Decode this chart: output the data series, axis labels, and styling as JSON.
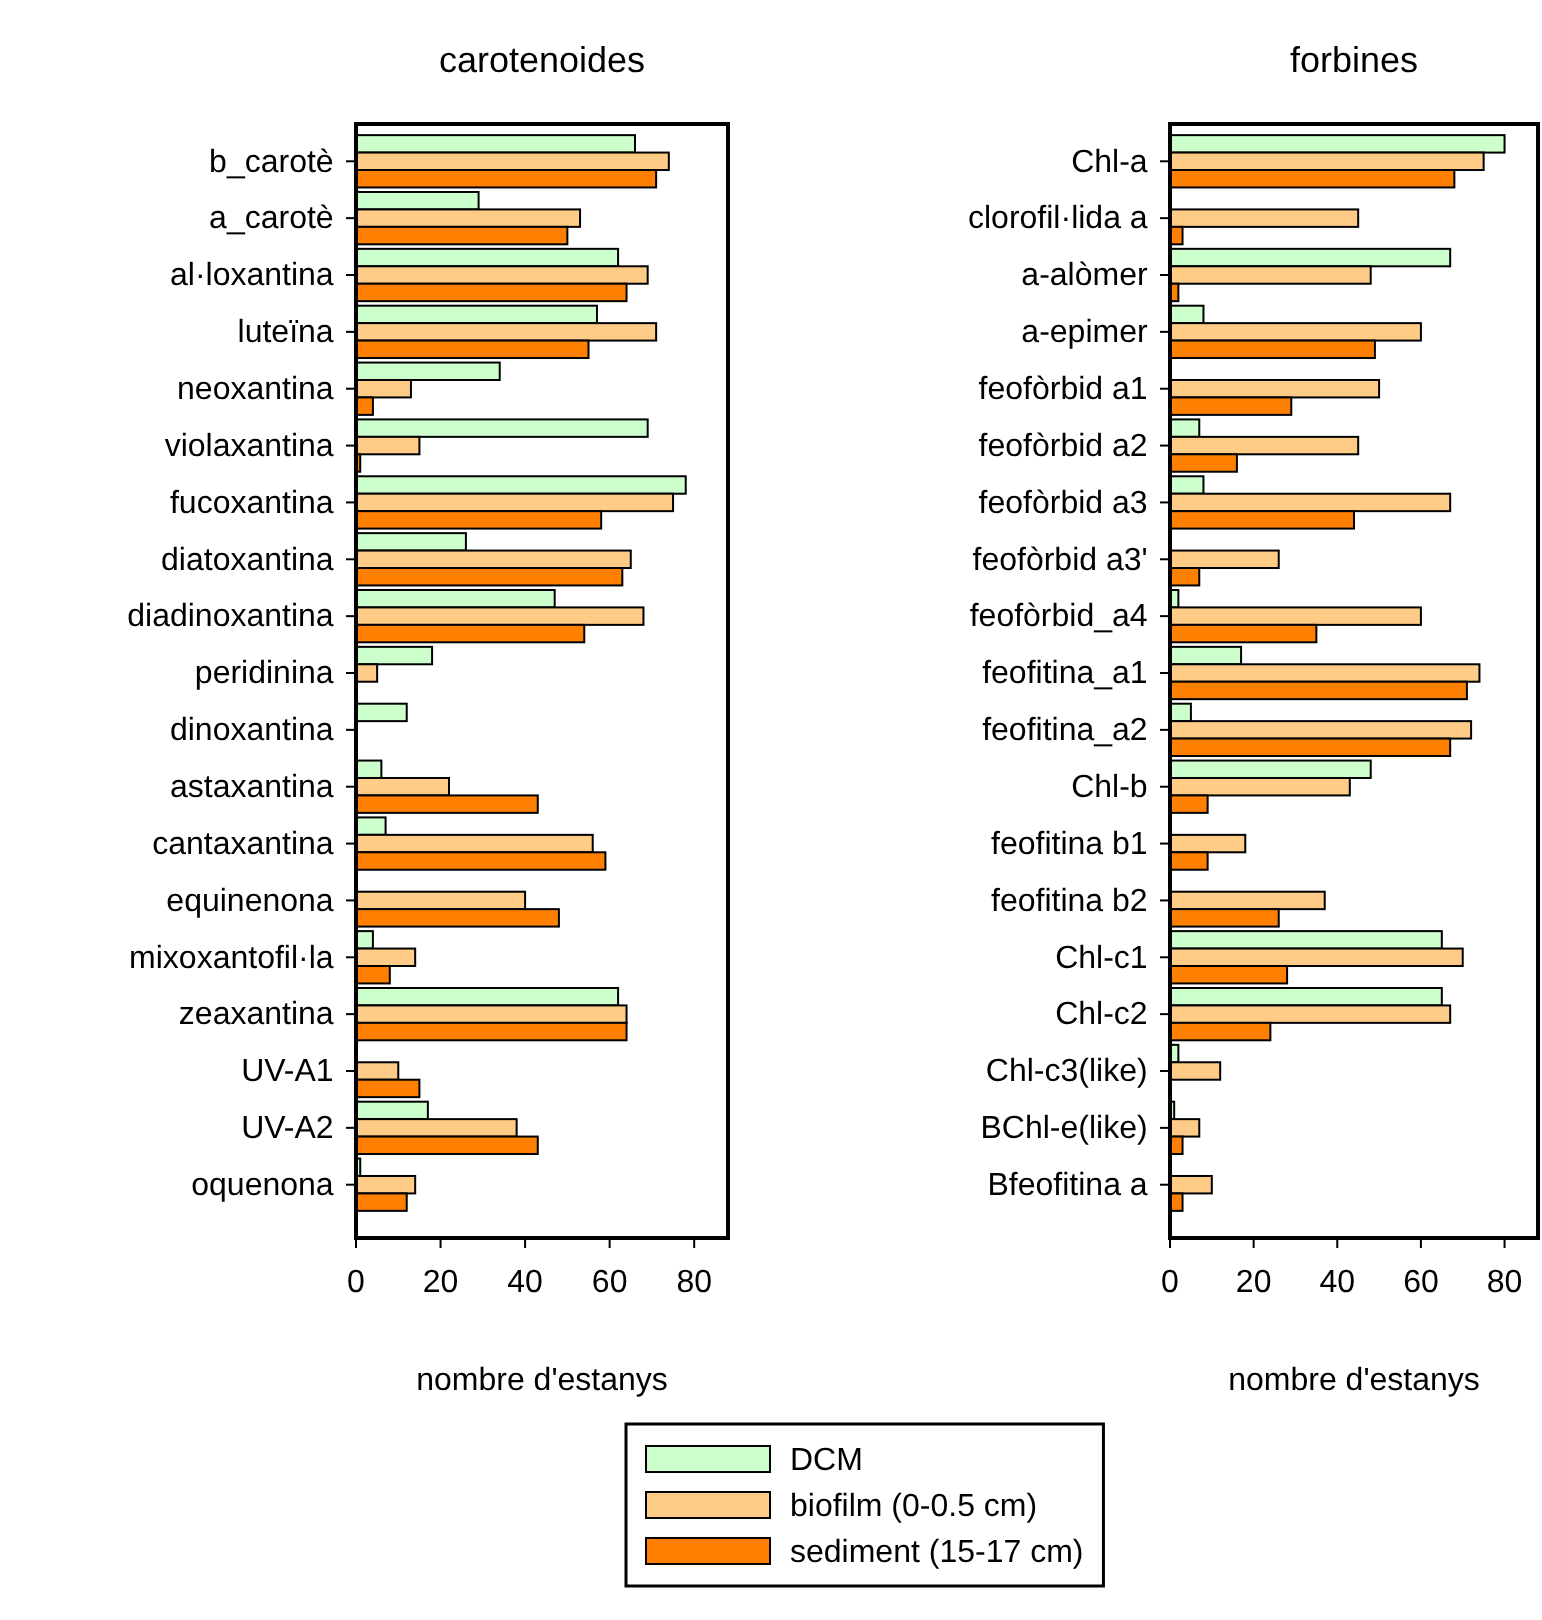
{
  "chart_data": [
    {
      "type": "bar",
      "orientation": "horizontal",
      "title": "carotenoides",
      "xlabel": "nombre d'estanys",
      "xlim": [
        0,
        88
      ],
      "xticks": [
        0,
        20,
        40,
        60,
        80
      ],
      "legend": "bottom",
      "categories": [
        "b_carotè",
        "a_carotè",
        "al·loxantina",
        "luteïna",
        "neoxantina",
        "violaxantina",
        "fucoxantina",
        "diatoxantina",
        "diadinoxantina",
        "peridinina",
        "dinoxantina",
        "astaxantina",
        "cantaxantina",
        "equinenona",
        "mixoxantofil·la",
        "zeaxantina",
        "UV-A1",
        "UV-A2",
        "oquenona"
      ],
      "series": [
        {
          "name": "DCM",
          "color": "#ccffcc",
          "values": [
            66,
            29,
            62,
            57,
            34,
            69,
            78,
            26,
            47,
            18,
            12,
            6,
            7,
            null,
            4,
            62,
            null,
            17,
            1
          ]
        },
        {
          "name": "biofilm (0-0.5 cm)",
          "color": "#ffcc88",
          "values": [
            74,
            53,
            69,
            71,
            13,
            15,
            75,
            65,
            68,
            5,
            null,
            22,
            56,
            40,
            14,
            64,
            10,
            38,
            14
          ]
        },
        {
          "name": "sediment (15-17 cm)",
          "color": "#ff8000",
          "values": [
            71,
            50,
            64,
            55,
            4,
            1,
            58,
            63,
            54,
            null,
            null,
            43,
            59,
            48,
            8,
            64,
            15,
            43,
            12
          ]
        }
      ]
    },
    {
      "type": "bar",
      "orientation": "horizontal",
      "title": "forbines",
      "xlabel": "nombre d'estanys",
      "xlim": [
        0,
        88
      ],
      "xticks": [
        0,
        20,
        40,
        60,
        80
      ],
      "categories": [
        "Chl-a",
        "clorofil·lida a",
        "a-alòmer",
        "a-epimer",
        "feofòrbid a1",
        "feofòrbid a2",
        "feofòrbid a3",
        "feofòrbid a3'",
        "feofòrbid_a4",
        "feofitina_a1",
        "feofitina_a2",
        "Chl-b",
        "feofitina b1",
        "feofitina b2",
        "Chl-c1",
        "Chl-c2",
        "Chl-c3(like)",
        "BChl-e(like)",
        "Bfeofitina a"
      ],
      "series": [
        {
          "color": "#ccffcc",
          "values": [
            80,
            null,
            67,
            8,
            null,
            7,
            8,
            null,
            2,
            17,
            5,
            48,
            null,
            null,
            65,
            65,
            2,
            1,
            null
          ]
        },
        {
          "color": "#ffcc88",
          "values": [
            75,
            45,
            48,
            60,
            50,
            45,
            67,
            26,
            60,
            74,
            72,
            43,
            18,
            37,
            70,
            67,
            12,
            7,
            10
          ]
        },
        {
          "color": "#ff8000",
          "values": [
            68,
            3,
            2,
            49,
            29,
            16,
            44,
            7,
            35,
            71,
            67,
            9,
            9,
            26,
            28,
            24,
            null,
            3,
            3
          ]
        }
      ]
    }
  ]
}
